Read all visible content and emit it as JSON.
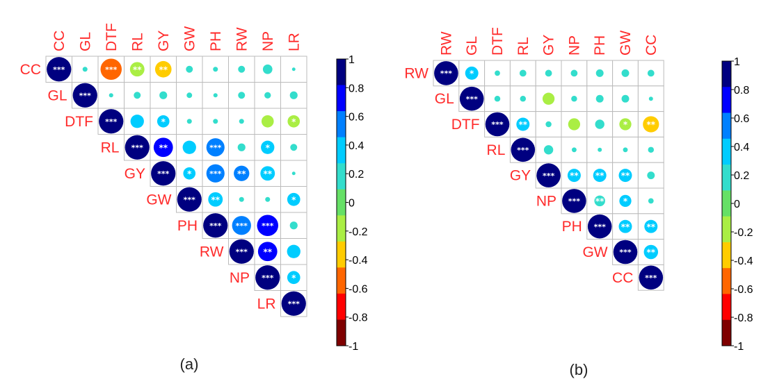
{
  "chart_data": [
    {
      "type": "heatmap",
      "subtype": "correlation-matrix-upper",
      "panel_label": "(a)",
      "variables": [
        "CC",
        "GL",
        "DTF",
        "RL",
        "GY",
        "GW",
        "PH",
        "RW",
        "NP",
        "LR"
      ],
      "correlations": [
        [
          1,
          0.04,
          -0.75,
          -0.35,
          -0.45,
          0.08,
          0.04,
          0.08,
          0.15,
          0.02
        ],
        [
          null,
          1,
          0.03,
          0.08,
          0.1,
          0.05,
          0.03,
          0.08,
          0.07,
          0.1
        ],
        [
          null,
          null,
          1,
          0.3,
          0.25,
          0.04,
          0.04,
          0.04,
          -0.25,
          -0.25
        ],
        [
          null,
          null,
          null,
          1,
          0.62,
          0.3,
          0.55,
          0.1,
          0.3,
          0.08
        ],
        [
          null,
          null,
          null,
          null,
          1,
          0.25,
          0.55,
          0.4,
          0.35,
          0.02
        ],
        [
          null,
          null,
          null,
          null,
          null,
          1,
          0.35,
          0.04,
          0.04,
          0.28
        ],
        [
          null,
          null,
          null,
          null,
          null,
          null,
          1,
          0.6,
          0.75,
          0.1
        ],
        [
          null,
          null,
          null,
          null,
          null,
          null,
          null,
          1,
          0.62,
          0.3
        ],
        [
          null,
          null,
          null,
          null,
          null,
          null,
          null,
          null,
          1,
          0.28
        ],
        [
          null,
          null,
          null,
          null,
          null,
          null,
          null,
          null,
          null,
          1
        ]
      ],
      "significance": [
        [
          "***",
          "",
          "***",
          "**",
          "**",
          "",
          "",
          "",
          "",
          ""
        ],
        [
          "",
          "***",
          "",
          "",
          "",
          "",
          "",
          "",
          "",
          ""
        ],
        [
          "",
          "",
          "***",
          "",
          "*",
          "",
          "",
          "",
          "",
          "*"
        ],
        [
          "",
          "",
          "",
          "***",
          "**",
          "",
          "***",
          "",
          "*",
          ""
        ],
        [
          "",
          "",
          "",
          "",
          "***",
          "*",
          "***",
          "**",
          "**",
          ""
        ],
        [
          "",
          "",
          "",
          "",
          "",
          "***",
          "**",
          "",
          "",
          "*"
        ],
        [
          "",
          "",
          "",
          "",
          "",
          "",
          "***",
          "***",
          "***",
          ""
        ],
        [
          "",
          "",
          "",
          "",
          "",
          "",
          "",
          "***",
          "**",
          ""
        ],
        [
          "",
          "",
          "",
          "",
          "",
          "",
          "",
          "",
          "***",
          "*"
        ],
        [
          "",
          "",
          "",
          "",
          "",
          "",
          "",
          "",
          "",
          "***"
        ]
      ],
      "colorbar_ticks": [
        "1",
        "0.8",
        "0.6",
        "0.4",
        "0.2",
        "0",
        "-0.2",
        "-0.4",
        "-0.6",
        "-0.8",
        "-1"
      ],
      "value_range": [
        -1,
        1
      ]
    },
    {
      "type": "heatmap",
      "subtype": "correlation-matrix-upper",
      "panel_label": "(b)",
      "variables": [
        "RW",
        "GL",
        "DTF",
        "RL",
        "GY",
        "NP",
        "PH",
        "GW",
        "CC"
      ],
      "correlations": [
        [
          1,
          0.3,
          0.05,
          0.08,
          0.08,
          0.08,
          0.1,
          0.1,
          0.08
        ],
        [
          null,
          1,
          0.06,
          0.06,
          -0.25,
          0.06,
          0.1,
          0.1,
          0.03
        ],
        [
          null,
          null,
          1,
          0.3,
          0.06,
          -0.25,
          0.15,
          -0.25,
          -0.45
        ],
        [
          null,
          null,
          null,
          1,
          0.15,
          0.04,
          0.03,
          0.04,
          0.06
        ],
        [
          null,
          null,
          null,
          null,
          1,
          0.3,
          0.3,
          0.3,
          0.1
        ],
        [
          null,
          null,
          null,
          null,
          null,
          1,
          0.2,
          0.25,
          0.05
        ],
        [
          null,
          null,
          null,
          null,
          null,
          null,
          1,
          0.3,
          0.3
        ],
        [
          null,
          null,
          null,
          null,
          null,
          null,
          null,
          1,
          0.35
        ],
        [
          null,
          null,
          null,
          null,
          null,
          null,
          null,
          null,
          1
        ]
      ],
      "significance": [
        [
          "***",
          "*",
          "",
          "",
          "",
          "",
          "",
          "",
          ""
        ],
        [
          "",
          "***",
          "",
          "",
          "",
          "",
          "",
          "",
          ""
        ],
        [
          "",
          "",
          "***",
          "**",
          "",
          "",
          "",
          "*",
          "**"
        ],
        [
          "",
          "",
          "",
          "***",
          "",
          "",
          "",
          "",
          ""
        ],
        [
          "",
          "",
          "",
          "",
          "***",
          "**",
          "**",
          "**",
          ""
        ],
        [
          "",
          "",
          "",
          "",
          "",
          "***",
          "**",
          "*",
          ""
        ],
        [
          "",
          "",
          "",
          "",
          "",
          "",
          "***",
          "**",
          "**"
        ],
        [
          "",
          "",
          "",
          "",
          "",
          "",
          "",
          "***",
          "**"
        ],
        [
          "",
          "",
          "",
          "",
          "",
          "",
          "",
          "",
          "***"
        ]
      ],
      "colorbar_ticks": [
        "1",
        "0.8",
        "0.6",
        "0.4",
        "0.2",
        "0",
        "-0.2",
        "-0.4",
        "-0.6",
        "-0.8",
        "-1"
      ],
      "value_range": [
        -1,
        1
      ]
    }
  ],
  "colors": {
    "palette_high_to_low": [
      "#000080",
      "#0000ff",
      "#0080ff",
      "#00ccff",
      "#33ddcc",
      "#66e066",
      "#aaee44",
      "#ffcc00",
      "#ff6600",
      "#ff0000",
      "#7f0000"
    ],
    "label": "#ff2a2a",
    "grid": "#bbbbbb"
  }
}
